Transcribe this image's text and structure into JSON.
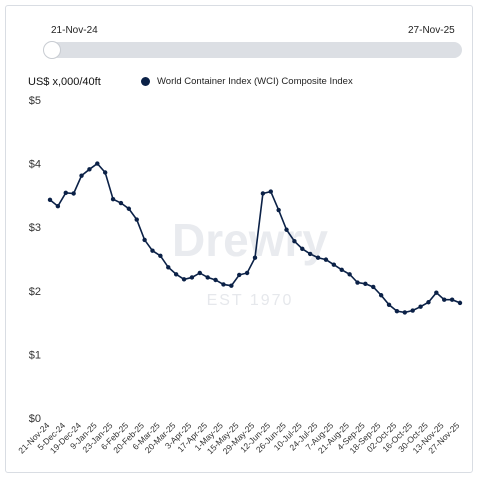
{
  "range_slider": {
    "start_label": "21-Nov-24",
    "end_label": "27-Nov-25"
  },
  "unit_label": "US$ x,000/40ft",
  "watermark": "Drewry EST 1970",
  "colors": {
    "series": "#0b2147",
    "track": "#dcdfe4",
    "axis_text": "#333333"
  },
  "chart_data": {
    "type": "line",
    "title": "",
    "xlabel": "",
    "ylabel": "US$ x,000/40ft",
    "ylim": [
      0,
      5
    ],
    "yticks": [
      "$0",
      "$1",
      "$2",
      "$3",
      "$4",
      "$5"
    ],
    "grid": false,
    "legend": "top",
    "x_tick_labels": [
      "21-Nov-24",
      "5-Dec-24",
      "19-Dec-24",
      "9-Jan-25",
      "23-Jan-25",
      "6-Feb-25",
      "20-Feb-25",
      "6-Mar-25",
      "20-Mar-25",
      "3-Apr-25",
      "17-Apr-25",
      "1-May-25",
      "15-May-25",
      "29-May-25",
      "12-Jun-25",
      "26-Jun-25",
      "10-Jul-25",
      "24-Jul-25",
      "7-Aug-25",
      "21-Aug-25",
      "4-Sep-25",
      "18-Sep-25",
      "02-Oct-25",
      "16-Oct-25",
      "30-Oct-25",
      "13-Nov-25",
      "27-Nov-25"
    ],
    "series": [
      {
        "name": "World Container Index (WCI) Composite Index",
        "values": [
          3.43,
          3.33,
          3.54,
          3.53,
          3.81,
          3.91,
          4.0,
          3.86,
          3.44,
          3.38,
          3.29,
          3.12,
          2.8,
          2.63,
          2.55,
          2.37,
          2.26,
          2.18,
          2.21,
          2.28,
          2.21,
          2.17,
          2.1,
          2.08,
          2.25,
          2.28,
          2.52,
          3.53,
          3.56,
          3.27,
          2.96,
          2.78,
          2.66,
          2.58,
          2.52,
          2.49,
          2.41,
          2.33,
          2.26,
          2.13,
          2.11,
          2.06,
          1.93,
          1.78,
          1.68,
          1.66,
          1.69,
          1.75,
          1.82,
          1.97,
          1.86,
          1.86,
          1.81
        ]
      }
    ]
  }
}
